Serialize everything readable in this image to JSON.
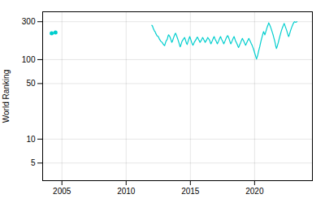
{
  "chart_data": {
    "type": "line",
    "ylabel": "World Ranking",
    "log": "y",
    "grid": true,
    "xlim": [
      2003.5,
      2024.5
    ],
    "xticks": [
      2005,
      2010,
      2015,
      2020
    ],
    "ylim": [
      3,
      400
    ],
    "yticks": [
      5,
      10,
      50,
      100,
      300
    ],
    "series": [
      {
        "type": "scatter",
        "marker": "o",
        "color": "#00cece",
        "x": [
          2004.2,
          2004.5
        ],
        "values": [
          215,
          220
        ]
      },
      {
        "type": "line",
        "color": "#00cece",
        "x": [
          2012.0,
          2012.05,
          2012.1,
          2012.15,
          2012.2,
          2012.25,
          2012.3,
          2012.4,
          2012.5,
          2012.6,
          2012.7,
          2012.8,
          2012.9,
          2013.0,
          2013.05,
          2013.1,
          2013.15,
          2013.2,
          2013.25,
          2013.3,
          2013.35,
          2013.4,
          2013.45,
          2013.5,
          2013.55,
          2013.6,
          2013.65,
          2013.7,
          2013.75,
          2013.8,
          2013.85,
          2013.9,
          2013.95,
          2014.0,
          2014.05,
          2014.1,
          2014.15,
          2014.2,
          2014.25,
          2014.3,
          2014.35,
          2014.4,
          2014.45,
          2014.5,
          2014.55,
          2014.6,
          2014.65,
          2014.7,
          2014.75,
          2014.8,
          2014.85,
          2014.9,
          2014.95,
          2015.0,
          2015.05,
          2015.1,
          2015.15,
          2015.2,
          2015.25,
          2015.3,
          2015.35,
          2015.4,
          2015.45,
          2015.5,
          2015.55,
          2015.6,
          2015.65,
          2015.7,
          2015.75,
          2015.8,
          2015.85,
          2015.9,
          2015.95,
          2016.0,
          2016.05,
          2016.1,
          2016.15,
          2016.2,
          2016.25,
          2016.3,
          2016.35,
          2016.4,
          2016.45,
          2016.5,
          2016.55,
          2016.6,
          2016.65,
          2016.7,
          2016.75,
          2016.8,
          2016.85,
          2016.9,
          2016.95,
          2017.0,
          2017.05,
          2017.1,
          2017.15,
          2017.2,
          2017.25,
          2017.3,
          2017.35,
          2017.4,
          2017.45,
          2017.5,
          2017.55,
          2017.6,
          2017.65,
          2017.7,
          2017.75,
          2017.8,
          2017.85,
          2017.9,
          2017.95,
          2018.0,
          2018.05,
          2018.1,
          2018.15,
          2018.2,
          2018.25,
          2018.3,
          2018.35,
          2018.4,
          2018.45,
          2018.5,
          2018.55,
          2018.6,
          2018.65,
          2018.7,
          2018.75,
          2018.8,
          2018.85,
          2018.9,
          2018.95,
          2019.0,
          2019.05,
          2019.1,
          2019.15,
          2019.2,
          2019.25,
          2019.3,
          2019.35,
          2019.4,
          2019.45,
          2019.5,
          2019.55,
          2019.6,
          2019.65,
          2019.7,
          2019.75,
          2019.8,
          2019.85,
          2019.9,
          2019.95,
          2020.0,
          2020.05,
          2020.1,
          2020.15,
          2020.2,
          2020.25,
          2020.3,
          2020.35,
          2020.4,
          2020.45,
          2020.5,
          2020.55,
          2020.6,
          2020.65,
          2020.7,
          2020.75,
          2020.8,
          2020.85,
          2020.9,
          2020.95,
          2021.0,
          2021.05,
          2021.1,
          2021.15,
          2021.2,
          2021.25,
          2021.3,
          2021.35,
          2021.4,
          2021.45,
          2021.5,
          2021.55,
          2021.6,
          2021.65,
          2021.7,
          2021.75,
          2021.8,
          2021.85,
          2021.9,
          2021.95,
          2022.0,
          2022.05,
          2022.1,
          2022.15,
          2022.2,
          2022.25,
          2022.3,
          2022.35,
          2022.4,
          2022.45,
          2022.5,
          2022.55,
          2022.6,
          2022.65,
          2022.7,
          2022.75,
          2022.8,
          2022.85,
          2022.9,
          2022.95,
          2023.0,
          2023.05,
          2023.1,
          2023.2,
          2023.3
        ],
        "values": [
          270,
          265,
          250,
          240,
          230,
          225,
          215,
          200,
          195,
          180,
          170,
          165,
          155,
          150,
          160,
          170,
          175,
          180,
          195,
          205,
          200,
          195,
          185,
          175,
          165,
          170,
          180,
          190,
          200,
          210,
          215,
          205,
          195,
          185,
          175,
          165,
          155,
          145,
          150,
          160,
          170,
          175,
          180,
          185,
          190,
          180,
          170,
          160,
          155,
          165,
          175,
          185,
          195,
          185,
          175,
          165,
          158,
          152,
          158,
          165,
          170,
          175,
          180,
          188,
          192,
          185,
          178,
          172,
          165,
          170,
          175,
          182,
          190,
          185,
          178,
          172,
          165,
          170,
          175,
          182,
          190,
          185,
          180,
          175,
          165,
          158,
          165,
          172,
          180,
          188,
          195,
          185,
          178,
          172,
          165,
          158,
          165,
          172,
          180,
          188,
          195,
          185,
          178,
          172,
          165,
          158,
          165,
          172,
          180,
          188,
          195,
          200,
          195,
          185,
          175,
          165,
          158,
          165,
          172,
          180,
          188,
          195,
          185,
          175,
          168,
          162,
          155,
          148,
          142,
          148,
          155,
          162,
          170,
          178,
          185,
          178,
          172,
          165,
          158,
          152,
          158,
          165,
          172,
          178,
          185,
          178,
          172,
          165,
          158,
          152,
          145,
          138,
          130,
          122,
          115,
          108,
          102,
          108,
          115,
          125,
          135,
          145,
          158,
          172,
          185,
          198,
          212,
          225,
          215,
          205,
          218,
          232,
          248,
          262,
          275,
          290,
          280,
          268,
          255,
          242,
          228,
          215,
          202,
          188,
          175,
          162,
          148,
          138,
          145,
          155,
          165,
          178,
          192,
          205,
          220,
          235,
          248,
          260,
          272,
          285,
          272,
          258,
          245,
          232,
          218,
          205,
          195,
          205,
          218,
          232,
          245,
          258,
          270,
          282,
          292,
          300,
          295,
          300
        ]
      }
    ]
  }
}
